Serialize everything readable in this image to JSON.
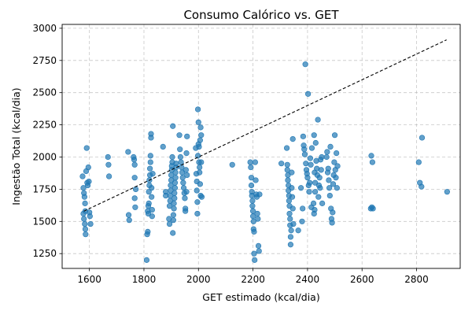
{
  "chart_data": {
    "type": "scatter",
    "title": "Consumo Calórico vs. GET",
    "xlabel": "GET estimado (kcal/dia)",
    "ylabel": "Ingestão Total (kcal/dia)",
    "xlim": [
      1500,
      2960
    ],
    "ylim": [
      1135,
      3030
    ],
    "xticks": [
      1600,
      1800,
      2000,
      2200,
      2400,
      2600,
      2800
    ],
    "yticks": [
      1250,
      1500,
      1750,
      2000,
      2250,
      2500,
      2750,
      3000
    ],
    "grid": true,
    "point_color": "#1f77b4",
    "reference_line": {
      "style": "dashed",
      "color": "#000000",
      "x": [
        1580,
        2910
      ],
      "y": [
        1580,
        2910
      ]
    },
    "points": [
      [
        1575,
        1850
      ],
      [
        1578,
        1760
      ],
      [
        1580,
        1720
      ],
      [
        1582,
        1690
      ],
      [
        1584,
        1640
      ],
      [
        1585,
        1580
      ],
      [
        1578,
        1560
      ],
      [
        1580,
        1520
      ],
      [
        1583,
        1480
      ],
      [
        1585,
        1440
      ],
      [
        1586,
        1400
      ],
      [
        1588,
        1890
      ],
      [
        1590,
        2070
      ],
      [
        1592,
        1800
      ],
      [
        1594,
        1780
      ],
      [
        1596,
        1920
      ],
      [
        1598,
        1810
      ],
      [
        1600,
        1570
      ],
      [
        1602,
        1540
      ],
      [
        1604,
        1480
      ],
      [
        1668,
        2000
      ],
      [
        1670,
        1940
      ],
      [
        1672,
        1850
      ],
      [
        1742,
        2040
      ],
      [
        1744,
        1550
      ],
      [
        1746,
        1510
      ],
      [
        1762,
        2000
      ],
      [
        1764,
        1980
      ],
      [
        1766,
        1940
      ],
      [
        1766,
        1840
      ],
      [
        1766,
        1680
      ],
      [
        1768,
        1610
      ],
      [
        1770,
        1750
      ],
      [
        1810,
        1200
      ],
      [
        1812,
        1400
      ],
      [
        1814,
        1420
      ],
      [
        1814,
        1580
      ],
      [
        1816,
        1560
      ],
      [
        1816,
        1620
      ],
      [
        1818,
        1640
      ],
      [
        1818,
        1730
      ],
      [
        1820,
        1780
      ],
      [
        1820,
        1820
      ],
      [
        1822,
        1860
      ],
      [
        1822,
        1910
      ],
      [
        1824,
        1960
      ],
      [
        1824,
        2010
      ],
      [
        1826,
        2150
      ],
      [
        1826,
        2180
      ],
      [
        1828,
        1760
      ],
      [
        1828,
        1690
      ],
      [
        1830,
        1590
      ],
      [
        1830,
        1540
      ],
      [
        1832,
        1870
      ],
      [
        1870,
        2080
      ],
      [
        1880,
        1730
      ],
      [
        1880,
        1700
      ],
      [
        1892,
        1520
      ],
      [
        1894,
        1480
      ],
      [
        1894,
        1620
      ],
      [
        1896,
        1660
      ],
      [
        1896,
        1700
      ],
      [
        1898,
        1740
      ],
      [
        1898,
        1780
      ],
      [
        1900,
        1820
      ],
      [
        1900,
        1860
      ],
      [
        1902,
        1900
      ],
      [
        1902,
        1930
      ],
      [
        1904,
        1960
      ],
      [
        1904,
        2000
      ],
      [
        1906,
        2240
      ],
      [
        1906,
        1410
      ],
      [
        1908,
        1510
      ],
      [
        1908,
        1550
      ],
      [
        1910,
        1600
      ],
      [
        1910,
        1640
      ],
      [
        1912,
        1680
      ],
      [
        1912,
        1720
      ],
      [
        1914,
        1760
      ],
      [
        1914,
        1800
      ],
      [
        1916,
        1840
      ],
      [
        1916,
        1880
      ],
      [
        1918,
        1920
      ],
      [
        1918,
        1950
      ],
      [
        1930,
        2170
      ],
      [
        1932,
        2060
      ],
      [
        1934,
        2000
      ],
      [
        1936,
        1960
      ],
      [
        1938,
        1920
      ],
      [
        1940,
        1880
      ],
      [
        1942,
        1840
      ],
      [
        1944,
        1800
      ],
      [
        1946,
        1760
      ],
      [
        1948,
        1720
      ],
      [
        1950,
        1680
      ],
      [
        1952,
        1600
      ],
      [
        1952,
        1580
      ],
      [
        1954,
        1900
      ],
      [
        1956,
        2030
      ],
      [
        1956,
        1730
      ],
      [
        1958,
        1860
      ],
      [
        1958,
        2160
      ],
      [
        1990,
        2070
      ],
      [
        1992,
        1870
      ],
      [
        1994,
        1810
      ],
      [
        1994,
        1740
      ],
      [
        1996,
        1650
      ],
      [
        1996,
        1560
      ],
      [
        1998,
        2010
      ],
      [
        1998,
        2370
      ],
      [
        2000,
        2270
      ],
      [
        2000,
        2100
      ],
      [
        2002,
        2080
      ],
      [
        2002,
        1960
      ],
      [
        2004,
        1920
      ],
      [
        2004,
        1880
      ],
      [
        2006,
        1790
      ],
      [
        2006,
        2130
      ],
      [
        2008,
        1700
      ],
      [
        2008,
        2230
      ],
      [
        2010,
        1960
      ],
      [
        2010,
        2170
      ],
      [
        2012,
        1690
      ],
      [
        2124,
        1940
      ],
      [
        2190,
        1960
      ],
      [
        2192,
        1920
      ],
      [
        2194,
        1840
      ],
      [
        2194,
        1780
      ],
      [
        2196,
        1730
      ],
      [
        2196,
        1700
      ],
      [
        2198,
        1660
      ],
      [
        2198,
        1620
      ],
      [
        2200,
        1580
      ],
      [
        2200,
        1540
      ],
      [
        2202,
        1500
      ],
      [
        2202,
        1440
      ],
      [
        2204,
        1420
      ],
      [
        2204,
        1250
      ],
      [
        2206,
        1200
      ],
      [
        2208,
        1960
      ],
      [
        2210,
        1820
      ],
      [
        2212,
        1710
      ],
      [
        2214,
        1690
      ],
      [
        2216,
        1560
      ],
      [
        2218,
        1520
      ],
      [
        2220,
        1310
      ],
      [
        2222,
        1270
      ],
      [
        2224,
        1710
      ],
      [
        2304,
        1950
      ],
      [
        2324,
        2070
      ],
      [
        2326,
        1940
      ],
      [
        2326,
        1900
      ],
      [
        2328,
        1860
      ],
      [
        2328,
        1820
      ],
      [
        2330,
        1780
      ],
      [
        2330,
        1740
      ],
      [
        2332,
        1700
      ],
      [
        2332,
        1660
      ],
      [
        2334,
        1620
      ],
      [
        2334,
        1560
      ],
      [
        2336,
        1520
      ],
      [
        2336,
        1470
      ],
      [
        2338,
        1380
      ],
      [
        2338,
        1320
      ],
      [
        2340,
        1430
      ],
      [
        2342,
        1880
      ],
      [
        2342,
        1760
      ],
      [
        2344,
        1690
      ],
      [
        2346,
        2140
      ],
      [
        2346,
        1600
      ],
      [
        2348,
        1480
      ],
      [
        2366,
        1430
      ],
      [
        2376,
        1760
      ],
      [
        2380,
        1500
      ],
      [
        2382,
        1600
      ],
      [
        2384,
        2160
      ],
      [
        2386,
        2090
      ],
      [
        2388,
        2060
      ],
      [
        2390,
        2020
      ],
      [
        2392,
        2720
      ],
      [
        2394,
        1950
      ],
      [
        2396,
        1900
      ],
      [
        2398,
        1870
      ],
      [
        2400,
        1840
      ],
      [
        2402,
        2490
      ],
      [
        2404,
        1780
      ],
      [
        2406,
        1730
      ],
      [
        2408,
        1800
      ],
      [
        2410,
        1990
      ],
      [
        2412,
        1940
      ],
      [
        2414,
        1610
      ],
      [
        2416,
        2070
      ],
      [
        2422,
        1640
      ],
      [
        2424,
        1560
      ],
      [
        2424,
        2170
      ],
      [
        2426,
        1590
      ],
      [
        2426,
        1880
      ],
      [
        2428,
        1800
      ],
      [
        2428,
        1730
      ],
      [
        2430,
        2110
      ],
      [
        2432,
        1970
      ],
      [
        2434,
        1910
      ],
      [
        2436,
        1860
      ],
      [
        2438,
        2290
      ],
      [
        2440,
        1690
      ],
      [
        2442,
        1780
      ],
      [
        2444,
        1840
      ],
      [
        2446,
        1760
      ],
      [
        2448,
        1980
      ],
      [
        2450,
        1900
      ],
      [
        2452,
        2000
      ],
      [
        2454,
        1640
      ],
      [
        2470,
        2000
      ],
      [
        2472,
        2040
      ],
      [
        2474,
        1880
      ],
      [
        2476,
        1910
      ],
      [
        2478,
        1820
      ],
      [
        2480,
        1760
      ],
      [
        2482,
        1700
      ],
      [
        2484,
        2080
      ],
      [
        2486,
        1600
      ],
      [
        2488,
        1520
      ],
      [
        2490,
        1490
      ],
      [
        2492,
        1570
      ],
      [
        2494,
        1790
      ],
      [
        2496,
        1860
      ],
      [
        2498,
        1960
      ],
      [
        2500,
        2170
      ],
      [
        2502,
        1900
      ],
      [
        2504,
        1840
      ],
      [
        2506,
        2030
      ],
      [
        2508,
        1760
      ],
      [
        2510,
        1930
      ],
      [
        2632,
        1600
      ],
      [
        2634,
        2010
      ],
      [
        2636,
        1610
      ],
      [
        2638,
        1960
      ],
      [
        2640,
        1600
      ],
      [
        2808,
        1960
      ],
      [
        2812,
        1800
      ],
      [
        2818,
        1770
      ],
      [
        2820,
        2150
      ],
      [
        2912,
        1730
      ]
    ]
  }
}
